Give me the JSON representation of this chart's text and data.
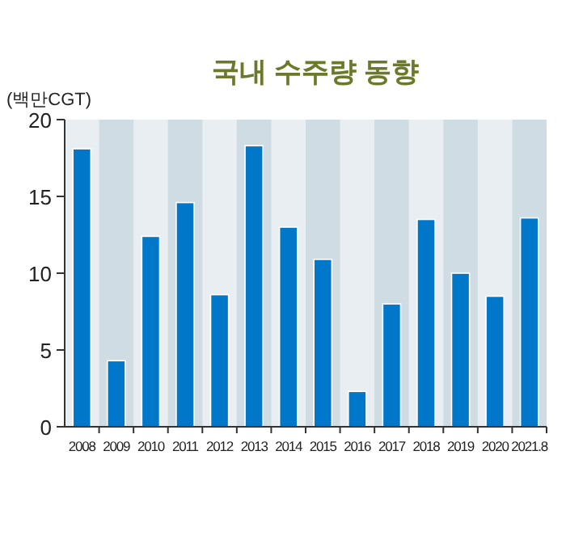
{
  "chart_data": {
    "type": "bar",
    "title": "국내 수주량 동향",
    "ylabel": "(백만CGT)",
    "categories": [
      "2008",
      "2009",
      "2010",
      "2011",
      "2012",
      "2013",
      "2014",
      "2015",
      "2016",
      "2017",
      "2018",
      "2019",
      "2020",
      "2021.8"
    ],
    "values": [
      18.1,
      4.3,
      12.4,
      14.6,
      8.6,
      18.3,
      13.0,
      10.9,
      2.3,
      8.0,
      13.5,
      10.0,
      8.5,
      13.6
    ],
    "color": "#0077c8",
    "ylim": [
      0,
      20
    ],
    "yticks": [
      0,
      5,
      10,
      15,
      20
    ],
    "grid": false,
    "bands": [
      {
        "axis": "x",
        "from": "2009",
        "to": "2009",
        "color": "#d0dce4"
      },
      {
        "axis": "x",
        "from": "2011",
        "to": "2011",
        "color": "#d0dce4"
      },
      {
        "axis": "x",
        "from": "2013",
        "to": "2013",
        "color": "#d0dce4"
      },
      {
        "axis": "x",
        "from": "2015",
        "to": "2015",
        "color": "#d0dce4"
      },
      {
        "axis": "x",
        "from": "2017",
        "to": "2017",
        "color": "#d0dce4"
      },
      {
        "axis": "x",
        "from": "2019",
        "to": "2019",
        "color": "#d0dce4"
      },
      {
        "axis": "x",
        "from": "2021.8",
        "to": "2021.8",
        "color": "#d0dce4"
      }
    ]
  }
}
